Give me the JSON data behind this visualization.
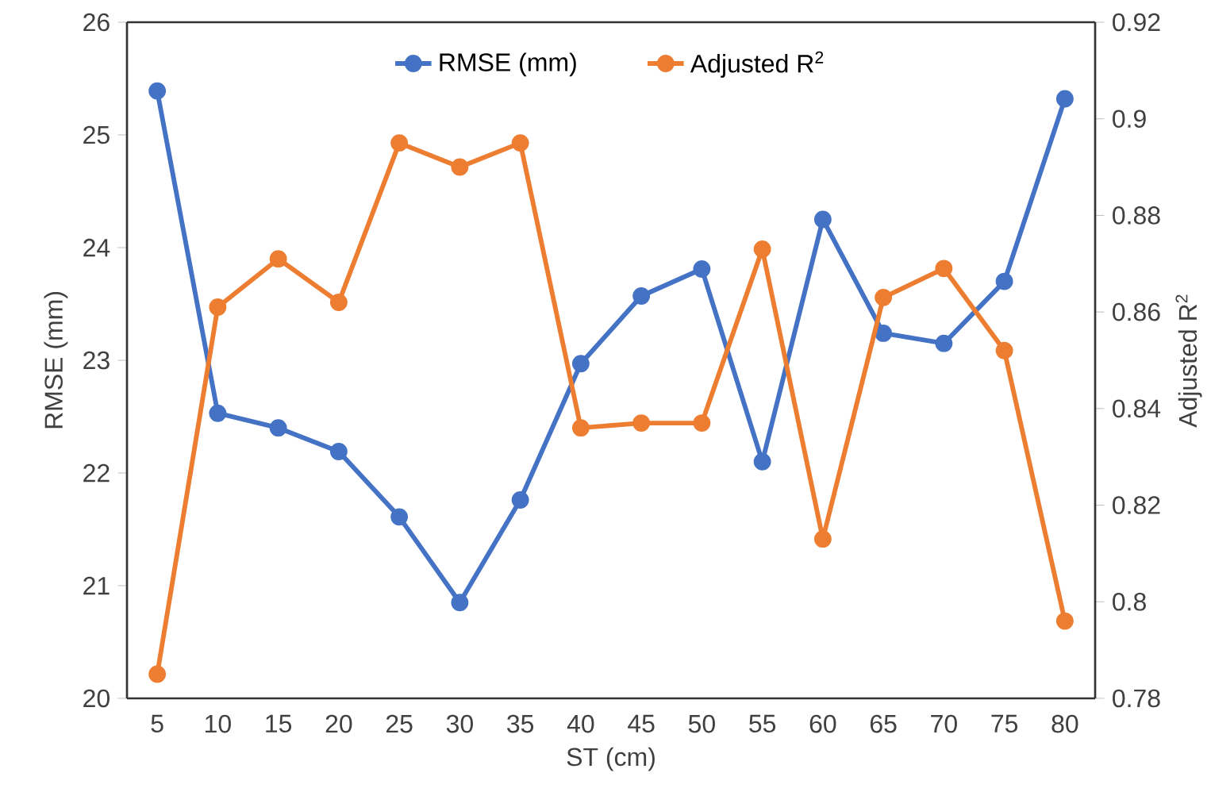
{
  "chart_data": {
    "type": "line",
    "xlabel": "ST (cm)",
    "ylabel": "RMSE (mm)",
    "y2label": "Adjusted R$^{2}$",
    "categories": [
      "5",
      "10",
      "15",
      "20",
      "25",
      "30",
      "35",
      "40",
      "45",
      "50",
      "55",
      "60",
      "65",
      "70",
      "75",
      "80"
    ],
    "series": [
      {
        "name": "RMSE (mm)",
        "color": "#4472c4",
        "values": [
          25.39,
          22.53,
          22.4,
          22.19,
          21.61,
          20.85,
          21.76,
          22.97,
          23.57,
          23.81,
          22.1,
          24.25,
          23.24,
          23.15,
          23.7,
          25.32
        ]
      },
      {
        "name": "Adjusted R$^{2}$",
        "color": "#ed7d31",
        "axis": "y2",
        "values": [
          0.785,
          0.861,
          0.871,
          0.862,
          0.895,
          0.89,
          0.895,
          0.836,
          0.837,
          0.837,
          0.873,
          0.813,
          0.863,
          0.869,
          0.852,
          0.796
        ]
      }
    ],
    "ylim": [
      20,
      26
    ],
    "yticks": [
      20,
      21,
      22,
      23,
      24,
      25,
      26
    ],
    "y2lim": [
      0.78,
      0.92
    ],
    "y2ticks": [
      0.78,
      0.8,
      0.82,
      0.84,
      0.86,
      0.88,
      0.9,
      0.92
    ],
    "legend": "top",
    "marker": "circle",
    "line_style": "solid",
    "grid": false
  }
}
